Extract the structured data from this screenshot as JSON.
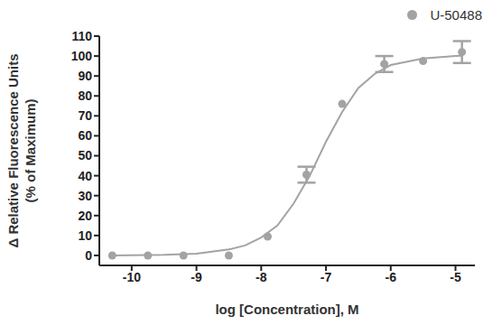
{
  "chart_data": {
    "type": "scatter",
    "x_label": "log [Concentration], M",
    "y_label": [
      "Δ Relative Fluorescence Units",
      "(% of Maximum)"
    ],
    "series": [
      {
        "name": "U-50488",
        "color": "#a3a3a3",
        "marker": "circle",
        "x": [
          -10.3,
          -9.75,
          -9.2,
          -8.5,
          -7.9,
          -7.3,
          -6.75,
          -6.1,
          -5.5,
          -4.9
        ],
        "values": [
          0,
          0,
          0,
          0,
          9.5,
          40.5,
          76,
          96,
          97.5,
          102
        ],
        "errors": [
          null,
          null,
          null,
          null,
          null,
          4,
          null,
          4,
          null,
          5.5
        ]
      }
    ],
    "fit_curve": {
      "color": "#a3a3a3",
      "line_style": "solid",
      "x": [
        -10.3,
        -9.5,
        -9,
        -8.5,
        -8.25,
        -8,
        -7.75,
        -7.5,
        -7.25,
        -7,
        -6.75,
        -6.5,
        -6.25,
        -6,
        -5.5,
        -5,
        -4.9
      ],
      "values": [
        0,
        0.3,
        0.9,
        3,
        5,
        9,
        15,
        26,
        40,
        57,
        72,
        84,
        91,
        95.5,
        98.8,
        100,
        100.2
      ]
    },
    "xlim": [
      -10.5,
      -4.7
    ],
    "xticks": [
      -10,
      -9,
      -8,
      -7,
      -6,
      -5
    ],
    "ylim": [
      -5,
      110
    ],
    "yticks": [
      0,
      10,
      20,
      30,
      40,
      50,
      60,
      70,
      80,
      90,
      100,
      110
    ],
    "grid": false,
    "legend": "upper right"
  }
}
